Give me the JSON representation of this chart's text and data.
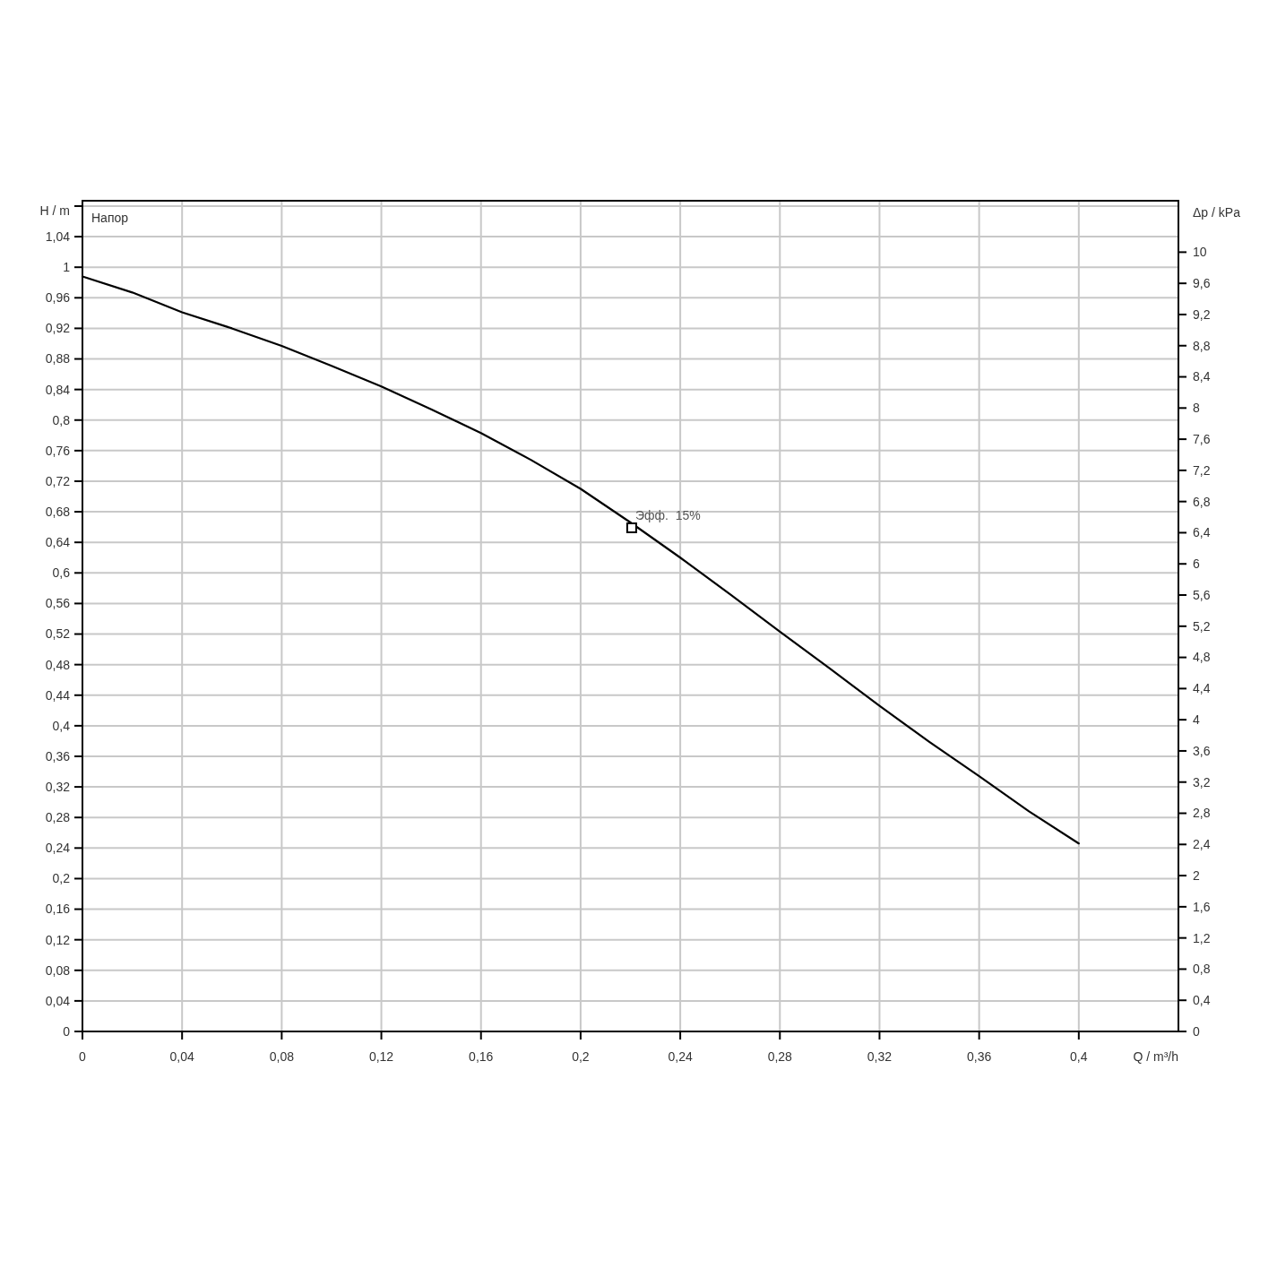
{
  "chart_data": {
    "type": "line",
    "xlabel": "Q / m³/h",
    "ylabel": "H / m",
    "y2label": "Δp / kPa",
    "xlim": [
      0,
      0.44
    ],
    "xticks": [
      0,
      {
        "value": 0.04,
        "label": "0,04"
      },
      {
        "value": 0.08,
        "label": "0,08"
      },
      {
        "value": 0.12,
        "label": "0,12"
      },
      {
        "value": 0.16,
        "label": "0,16"
      },
      {
        "value": 0.2,
        "label": "0,2"
      },
      {
        "value": 0.24,
        "label": "0,24"
      },
      {
        "value": 0.28,
        "label": "0,28"
      },
      {
        "value": 0.32,
        "label": "0,32"
      },
      {
        "value": 0.36,
        "label": "0,36"
      },
      {
        "value": 0.4,
        "label": "0,4"
      }
    ],
    "ylim": [
      0,
      1.087
    ],
    "yticks": [
      0,
      {
        "value": 0.04,
        "label": "0,04"
      },
      {
        "value": 0.08,
        "label": "0,08"
      },
      {
        "value": 0.12,
        "label": "0,12"
      },
      {
        "value": 0.16,
        "label": "0,16"
      },
      {
        "value": 0.2,
        "label": "0,2"
      },
      {
        "value": 0.24,
        "label": "0,24"
      },
      {
        "value": 0.28,
        "label": "0,28"
      },
      {
        "value": 0.32,
        "label": "0,32"
      },
      {
        "value": 0.36,
        "label": "0,36"
      },
      {
        "value": 0.4,
        "label": "0,4"
      },
      {
        "value": 0.44,
        "label": "0,44"
      },
      {
        "value": 0.48,
        "label": "0,48"
      },
      {
        "value": 0.52,
        "label": "0,52"
      },
      {
        "value": 0.56,
        "label": "0,56"
      },
      {
        "value": 0.6,
        "label": "0,6"
      },
      {
        "value": 0.64,
        "label": "0,64"
      },
      {
        "value": 0.68,
        "label": "0,68"
      },
      {
        "value": 0.72,
        "label": "0,72"
      },
      {
        "value": 0.76,
        "label": "0,76"
      },
      {
        "value": 0.8,
        "label": "0,8"
      },
      {
        "value": 0.84,
        "label": "0,84"
      },
      {
        "value": 0.88,
        "label": "0,88"
      },
      {
        "value": 0.92,
        "label": "0,92"
      },
      {
        "value": 0.96,
        "label": "0,96"
      },
      1,
      {
        "value": 1.04,
        "label": "1,04"
      },
      {
        "value": 1.08,
        "label": null
      }
    ],
    "y2lim": [
      0,
      10.66
    ],
    "y2ticks": [
      0,
      {
        "value": 0.4,
        "label": "0,4"
      },
      {
        "value": 0.8,
        "label": "0,8"
      },
      {
        "value": 1.2,
        "label": "1,2"
      },
      {
        "value": 1.6,
        "label": "1,6"
      },
      2,
      {
        "value": 2.4,
        "label": "2,4"
      },
      {
        "value": 2.8,
        "label": "2,8"
      },
      {
        "value": 3.2,
        "label": "3,2"
      },
      {
        "value": 3.6,
        "label": "3,6"
      },
      4,
      {
        "value": 4.4,
        "label": "4,4"
      },
      {
        "value": 4.8,
        "label": "4,8"
      },
      {
        "value": 5.2,
        "label": "5,2"
      },
      {
        "value": 5.6,
        "label": "5,6"
      },
      6,
      {
        "value": 6.4,
        "label": "6,4"
      },
      {
        "value": 6.8,
        "label": "6,8"
      },
      {
        "value": 7.2,
        "label": "7,2"
      },
      {
        "value": 7.6,
        "label": "7,6"
      },
      8,
      {
        "value": 8.4,
        "label": "8,4"
      },
      {
        "value": 8.8,
        "label": "8,8"
      },
      {
        "value": 9.2,
        "label": "9,2"
      },
      {
        "value": 9.6,
        "label": "9,6"
      },
      10
    ],
    "grid": true,
    "legend": "top left",
    "marker": "none",
    "line_style": "solid",
    "x": [
      0,
      0.02,
      0.04,
      0.06,
      0.08,
      0.1,
      0.12,
      0.14,
      0.16,
      0.18,
      0.2,
      0.22,
      0.24,
      0.26,
      0.28,
      0.3,
      0.32,
      0.34,
      0.36,
      0.38,
      0.4
    ],
    "series": [
      {
        "name": "Напор",
        "color": "#000000",
        "values": [
          0.988,
          0.967,
          0.941,
          0.92,
          0.897,
          0.871,
          0.844,
          0.814,
          0.783,
          0.748,
          0.71,
          0.666,
          0.62,
          0.572,
          0.523,
          0.475,
          0.426,
          0.379,
          0.334,
          0.288,
          0.246
        ]
      },
      {
        "type": "scatter",
        "marker": "square",
        "color": "#000000",
        "x": [
          0.2205
        ],
        "values": [
          0.659
        ]
      }
    ],
    "annotations": [
      {
        "text": "Эфф.  15%",
        "x": 0.2205,
        "y": 0.659
      }
    ]
  }
}
